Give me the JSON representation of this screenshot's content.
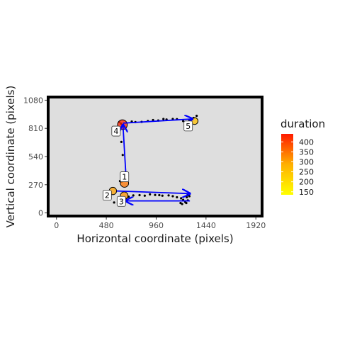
{
  "chart_data": {
    "type": "scatter",
    "xlabel": "Horizontal coordinate (pixels)",
    "ylabel": "Vertical coordinate (pixels)",
    "xlim": [
      -80,
      1980
    ],
    "ylim": [
      -30,
      1110
    ],
    "x_ticks": [
      0,
      480,
      960,
      1440,
      1920
    ],
    "x_tick_labels": [
      "0",
      "480",
      "960",
      "1440",
      "1920"
    ],
    "y_ticks": [
      0,
      270,
      540,
      810,
      1080
    ],
    "y_tick_labels": [
      "0",
      "270",
      "540",
      "810",
      "1080"
    ],
    "grid": false,
    "panel_background": "#dedede",
    "legend": {
      "title": "duration",
      "placement": "right",
      "ticks": [
        150,
        200,
        250,
        300,
        350,
        400
      ],
      "tick_labels": [
        "150",
        "200",
        "250",
        "300",
        "350",
        "400"
      ],
      "range": [
        135,
        440
      ],
      "color_low": "#ffff00",
      "color_high": "#ff1a00"
    },
    "samples": [
      [
        555,
        100
      ],
      [
        602,
        92
      ],
      [
        630,
        100
      ],
      [
        640,
        122
      ],
      [
        665,
        140
      ],
      [
        695,
        155
      ],
      [
        740,
        168
      ],
      [
        800,
        170
      ],
      [
        850,
        165
      ],
      [
        900,
        178
      ],
      [
        950,
        172
      ],
      [
        990,
        170
      ],
      [
        1020,
        165
      ],
      [
        1080,
        168
      ],
      [
        1120,
        160
      ],
      [
        1160,
        150
      ],
      [
        1200,
        140
      ],
      [
        1220,
        125
      ],
      [
        1240,
        110
      ],
      [
        1250,
        95
      ],
      [
        1255,
        150
      ],
      [
        1262,
        170
      ],
      [
        1275,
        180
      ],
      [
        1280,
        160
      ],
      [
        1265,
        120
      ],
      [
        1240,
        105
      ],
      [
        1210,
        85
      ],
      [
        1195,
        95
      ],
      [
        612,
        305
      ],
      [
        622,
        315
      ],
      [
        628,
        300
      ],
      [
        638,
        555
      ],
      [
        625,
        680
      ],
      [
        622,
        855
      ],
      [
        605,
        870
      ],
      [
        725,
        875
      ],
      [
        760,
        870
      ],
      [
        820,
        872
      ],
      [
        880,
        880
      ],
      [
        930,
        890
      ],
      [
        980,
        885
      ],
      [
        1030,
        900
      ],
      [
        1060,
        895
      ],
      [
        1120,
        900
      ],
      [
        1160,
        898
      ],
      [
        1220,
        880
      ],
      [
        1280,
        890
      ],
      [
        1300,
        900
      ],
      [
        1320,
        910
      ],
      [
        1350,
        930
      ]
    ],
    "fixations": [
      {
        "label": "1",
        "x": 655,
        "y": 285,
        "duration": 320
      },
      {
        "label": "2",
        "x": 543,
        "y": 210,
        "duration": 260
      },
      {
        "label": "3",
        "x": 652,
        "y": 165,
        "duration": 280
      },
      {
        "label": "4",
        "x": 635,
        "y": 845,
        "duration": 430
      },
      {
        "label": "5",
        "x": 1330,
        "y": 880,
        "duration": 220
      }
    ],
    "saccades": [
      {
        "x": [
          580,
          1285
        ],
        "y": [
          210,
          185
        ]
      },
      {
        "x": [
          1285,
          665
        ],
        "y": [
          115,
          115
        ]
      },
      {
        "x": [
          670,
          640
        ],
        "y": [
          340,
          845
        ]
      },
      {
        "x": [
          640,
          1310
        ],
        "y": [
          860,
          900
        ]
      }
    ],
    "saccade_color": "#0000ff"
  }
}
